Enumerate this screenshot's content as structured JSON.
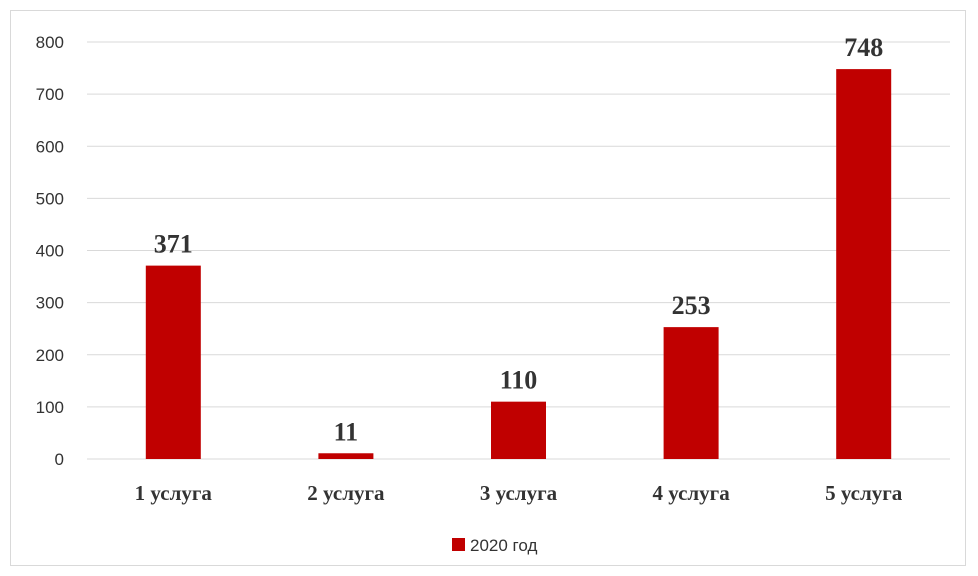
{
  "chart_data": {
    "type": "bar",
    "categories": [
      "1 услуга",
      "2 услуга",
      "3 услуга",
      "4 услуга",
      "5 услуга"
    ],
    "series": [
      {
        "name": "2020 год",
        "values": [
          371,
          11,
          110,
          253,
          748
        ],
        "color": "#C00000"
      }
    ],
    "data_labels": [
      "371",
      "11",
      "110",
      "253",
      "748"
    ],
    "y_ticks": [
      "0",
      "100",
      "200",
      "300",
      "400",
      "500",
      "600",
      "700",
      "800"
    ],
    "ylim": [
      0,
      800
    ],
    "title": "",
    "xlabel": "",
    "ylabel": "",
    "grid": true,
    "legend_position": "bottom",
    "colors": {
      "bar": "#C00000",
      "grid": "#d9d9d9",
      "text": "#333333"
    }
  }
}
